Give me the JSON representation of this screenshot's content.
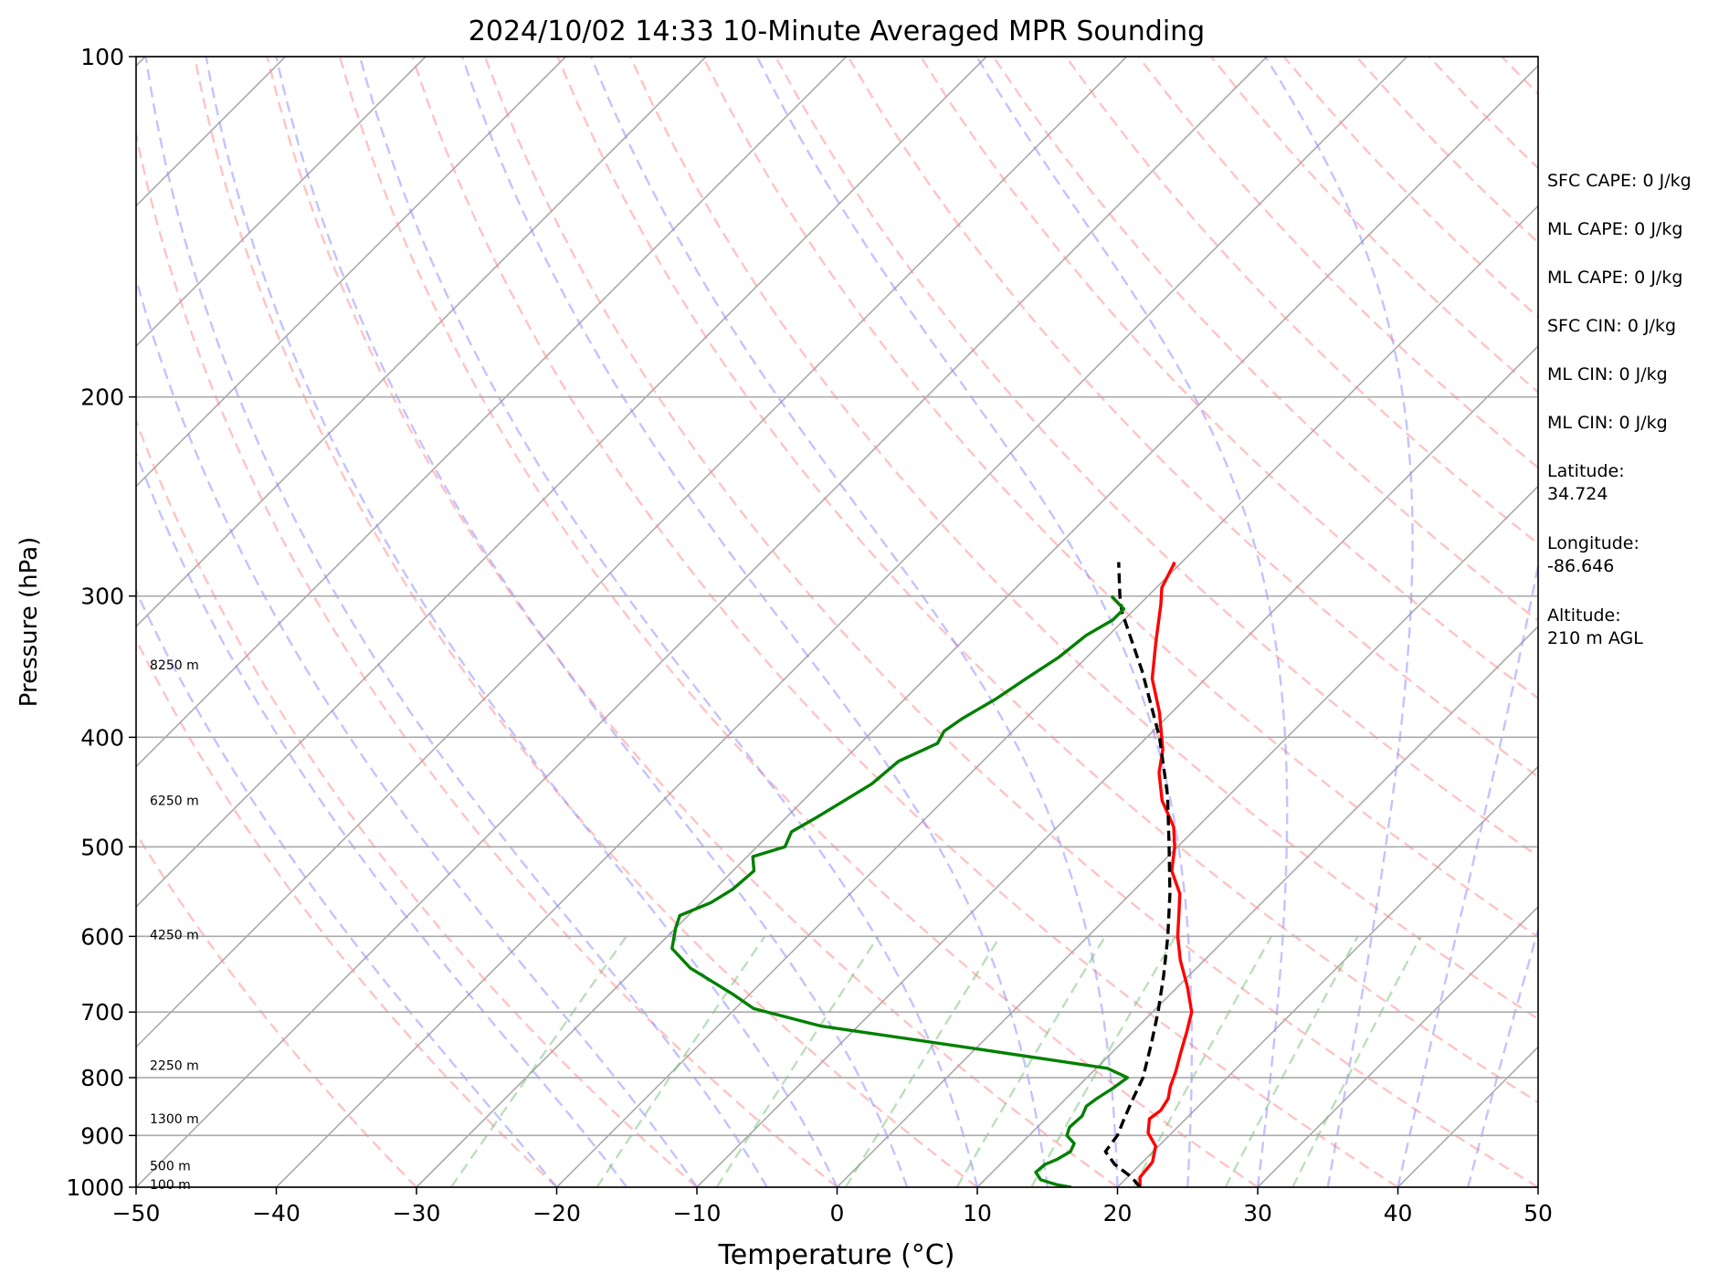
{
  "chart_data": {
    "type": "skew-t",
    "title": "2024/10/02 14:33 10-Minute Averaged MPR Sounding",
    "xlabel": "Temperature (°C)",
    "ylabel": "Pressure (hPa)",
    "xlim": [
      -50,
      50
    ],
    "ylim": [
      1000,
      100
    ],
    "yscale": "log",
    "skew": "45 degrees",
    "grid": true,
    "x_ticks": [
      -50,
      -40,
      -30,
      -20,
      -10,
      0,
      10,
      20,
      30,
      40,
      50
    ],
    "x_tick_labels": [
      "−50",
      "−40",
      "−30",
      "−20",
      "−10",
      "0",
      "10",
      "20",
      "30",
      "40",
      "50"
    ],
    "y_ticks": [
      1000,
      900,
      800,
      700,
      600,
      500,
      400,
      300,
      200,
      100
    ],
    "y_tick_labels": [
      "1000",
      "900",
      "800",
      "700",
      "600",
      "500",
      "400",
      "300",
      "200",
      "100"
    ],
    "height_labels": [
      {
        "text": "8250 m",
        "pressure": 345
      },
      {
        "text": "6250 m",
        "pressure": 455
      },
      {
        "text": "4250 m",
        "pressure": 598
      },
      {
        "text": "2250 m",
        "pressure": 780
      },
      {
        "text": "1300 m",
        "pressure": 870
      },
      {
        "text": "500 m",
        "pressure": 957
      },
      {
        "text": "100 m",
        "pressure": 994
      }
    ],
    "series": [
      {
        "type": "temperature",
        "color": "#ff0000",
        "points": [
          [
            1000,
            21.6
          ],
          [
            980,
            20.9
          ],
          [
            950,
            20.7
          ],
          [
            920,
            19.8
          ],
          [
            895,
            18.3
          ],
          [
            870,
            17.4
          ],
          [
            855,
            17.6
          ],
          [
            835,
            17.3
          ],
          [
            815,
            16.6
          ],
          [
            790,
            15.9
          ],
          [
            760,
            14.9
          ],
          [
            730,
            13.9
          ],
          [
            700,
            12.8
          ],
          [
            665,
            10.7
          ],
          [
            630,
            8.3
          ],
          [
            600,
            6.4
          ],
          [
            570,
            4.7
          ],
          [
            550,
            3.5
          ],
          [
            525,
            1.3
          ],
          [
            500,
            -0.2
          ],
          [
            480,
            -1.7
          ],
          [
            455,
            -4.4
          ],
          [
            430,
            -6.6
          ],
          [
            410,
            -8.0
          ],
          [
            380,
            -10.9
          ],
          [
            355,
            -13.8
          ],
          [
            330,
            -16.1
          ],
          [
            305,
            -18.5
          ],
          [
            295,
            -19.6
          ],
          [
            280,
            -20.5
          ]
        ]
      },
      {
        "type": "parcel",
        "color": "#000000",
        "dashed": true,
        "points": [
          [
            1000,
            21.6
          ],
          [
            980,
            20.3
          ],
          [
            955,
            18.2
          ],
          [
            930,
            16.6
          ],
          [
            900,
            16.3
          ],
          [
            870,
            15.6
          ],
          [
            840,
            14.9
          ],
          [
            800,
            14.0
          ],
          [
            750,
            12.3
          ],
          [
            700,
            10.4
          ],
          [
            650,
            8.2
          ],
          [
            600,
            5.7
          ],
          [
            550,
            2.8
          ],
          [
            500,
            -0.6
          ],
          [
            450,
            -4.4
          ],
          [
            400,
            -9.1
          ],
          [
            350,
            -15.0
          ],
          [
            310,
            -20.7
          ],
          [
            300,
            -22.0
          ],
          [
            280,
            -24.5
          ]
        ]
      },
      {
        "type": "dewpoint",
        "color": "#008000",
        "points": [
          [
            1000,
            16.7
          ],
          [
            995,
            15.5
          ],
          [
            985,
            14.0
          ],
          [
            970,
            13.1
          ],
          [
            955,
            13.2
          ],
          [
            945,
            13.7
          ],
          [
            930,
            14.1
          ],
          [
            915,
            13.8
          ],
          [
            900,
            12.7
          ],
          [
            885,
            12.3
          ],
          [
            865,
            12.4
          ],
          [
            848,
            12.0
          ],
          [
            835,
            12.2
          ],
          [
            818,
            12.6
          ],
          [
            800,
            12.9
          ],
          [
            785,
            10.8
          ],
          [
            755,
            0.3
          ],
          [
            720,
            -12.7
          ],
          [
            695,
            -18.7
          ],
          [
            675,
            -21.2
          ],
          [
            640,
            -26.1
          ],
          [
            615,
            -28.8
          ],
          [
            590,
            -30.0
          ],
          [
            575,
            -30.6
          ],
          [
            560,
            -29.3
          ],
          [
            545,
            -28.7
          ],
          [
            525,
            -28.5
          ],
          [
            510,
            -29.6
          ],
          [
            500,
            -28.0
          ],
          [
            485,
            -28.6
          ],
          [
            470,
            -27.8
          ],
          [
            440,
            -26.3
          ],
          [
            420,
            -26.0
          ],
          [
            405,
            -24.5
          ],
          [
            395,
            -24.9
          ],
          [
            385,
            -24.5
          ],
          [
            370,
            -23.5
          ],
          [
            355,
            -22.8
          ],
          [
            340,
            -22.0
          ],
          [
            325,
            -21.6
          ],
          [
            315,
            -20.8
          ],
          [
            308,
            -20.8
          ],
          [
            300,
            -22.6
          ]
        ]
      }
    ],
    "background_lines": {
      "isotherms": "gray solid",
      "dry_adiabats": "red dashed",
      "moist_adiabats": "blue dashed",
      "mixing_ratio": "green dashed"
    }
  },
  "side_panel": {
    "sfc_cape": "SFC CAPE: 0 J/kg",
    "ml_cape_1": "ML CAPE: 0 J/kg",
    "ml_cape_2": "ML CAPE: 0 J/kg",
    "sfc_cin": "SFC CIN: 0 J/kg",
    "ml_cin_1": "ML CIN: 0 J/kg",
    "ml_cin_2": "ML CIN: 0 J/kg",
    "latitude": "Latitude:\n34.724",
    "longitude": "Longitude:\n-86.646",
    "altitude": "Altitude:\n210 m AGL"
  }
}
